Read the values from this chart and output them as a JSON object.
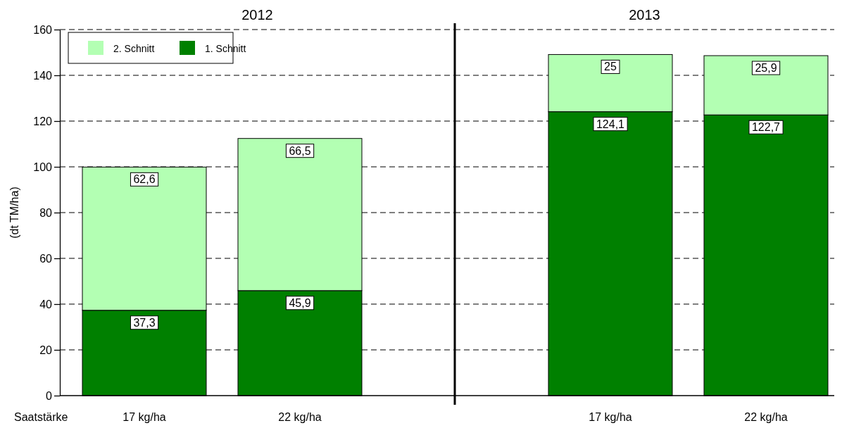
{
  "chart_data": [
    {
      "type": "bar",
      "title": "2012",
      "xlabel": "Saatstärke",
      "ylabel": "(dt TM/ha)",
      "categories": [
        "17 kg/ha",
        "22 kg/ha"
      ],
      "stacked": true,
      "ylim": [
        0,
        160
      ],
      "yticks": [
        0,
        20,
        40,
        60,
        80,
        100,
        120,
        140,
        160
      ],
      "grid": "y",
      "legend": "top left",
      "series": [
        {
          "name": "1. Schnitt",
          "color": "#008000",
          "values": [
            37.3,
            45.9
          ],
          "value_labels": [
            "37,3",
            "45,9"
          ]
        },
        {
          "name": "2. Schnitt",
          "color": "#b3ffb3",
          "values": [
            62.6,
            66.5
          ],
          "value_labels": [
            "62,6",
            "66,5"
          ]
        }
      ]
    },
    {
      "type": "bar",
      "title": "2013",
      "categories": [
        "17 kg/ha",
        "22 kg/ha"
      ],
      "stacked": true,
      "ylim": [
        0,
        160
      ],
      "yticks": [
        0,
        20,
        40,
        60,
        80,
        100,
        120,
        140,
        160
      ],
      "grid": "y",
      "tick_labels": "x",
      "series": [
        {
          "color": "#008000",
          "values": [
            124.1,
            122.7
          ],
          "value_labels": [
            "124,1",
            "122,7"
          ]
        },
        {
          "color": "#b3ffb3",
          "values": [
            25,
            25.9
          ],
          "value_labels": [
            "25",
            "25,9"
          ]
        }
      ]
    }
  ]
}
